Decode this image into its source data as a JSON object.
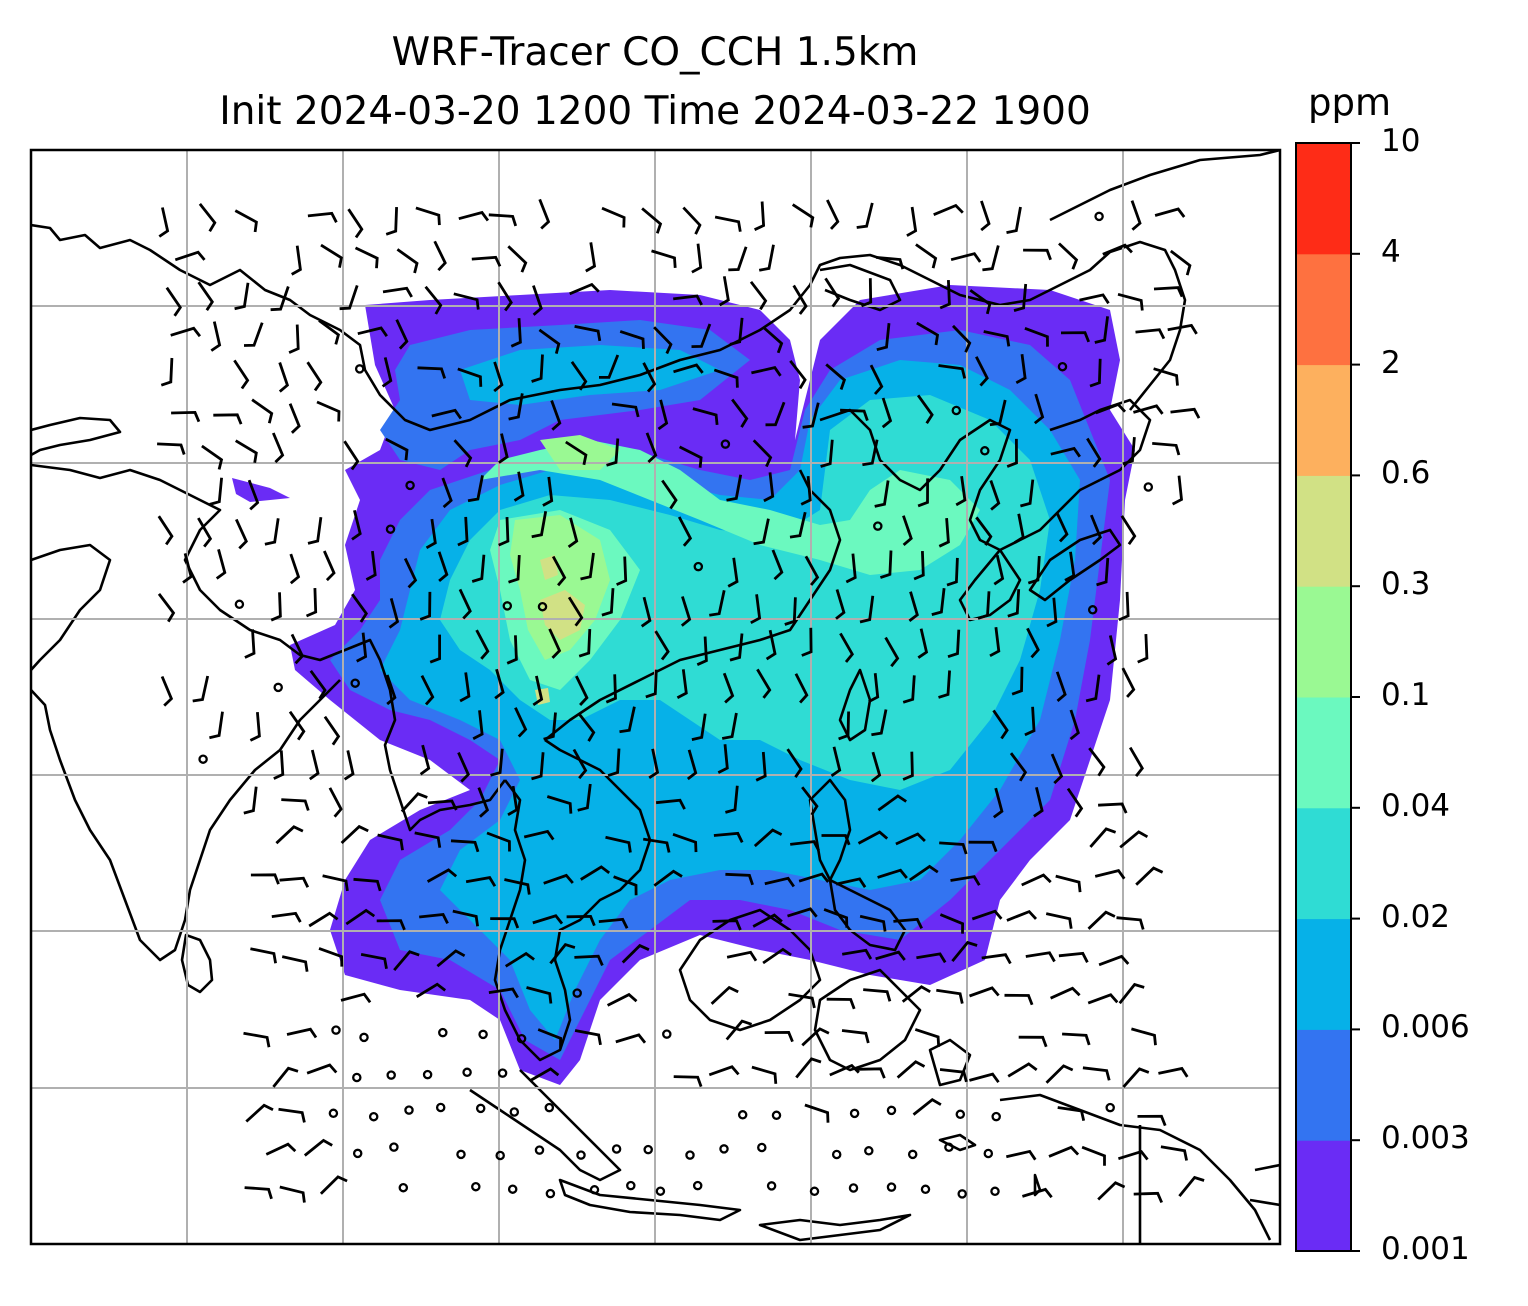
{
  "title": {
    "line1": "WRF-Tracer CO_CCH 1.5km",
    "line2": "Init 2024-03-20 1200 Time 2024-03-22 1900"
  },
  "colorbar": {
    "unit": "ppm",
    "levels": [
      "0.001",
      "0.003",
      "0.006",
      "0.02",
      "0.04",
      "0.1",
      "0.3",
      "0.6",
      "2",
      "4",
      "10"
    ],
    "colors": [
      "#6a2cf5",
      "#3374f1",
      "#06b1e8",
      "#2fdcd4",
      "#6bf9bf",
      "#9af993",
      "#d1e185",
      "#fdb05e",
      "#fe7140",
      "#fe2c17"
    ]
  },
  "map": {
    "gridlines": "on",
    "land_outline_color": "#000000",
    "gridline_color": "#b0b0b0",
    "wind_symbol": "wind barbs (calm = circle)"
  }
}
